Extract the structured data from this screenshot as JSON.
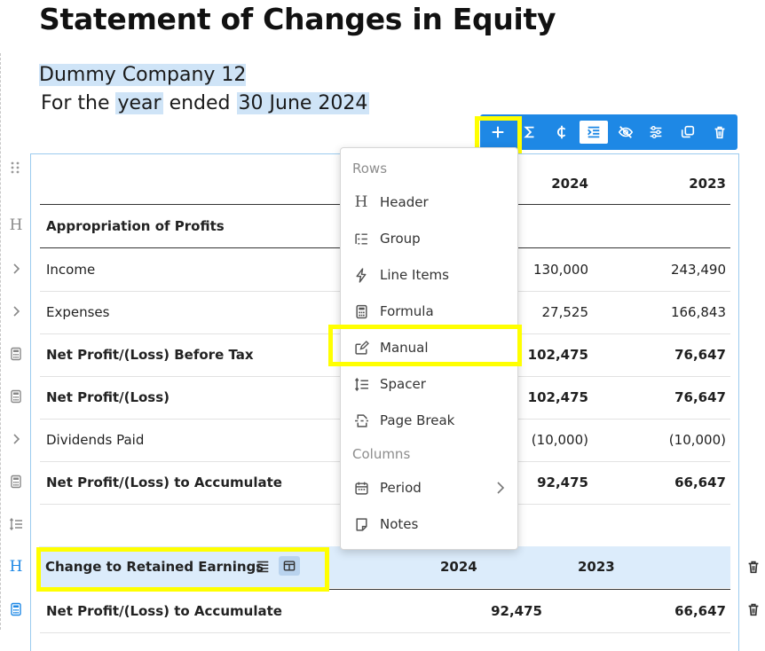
{
  "title": "Statement of Changes in Equity",
  "company": "Dummy Company 12",
  "period": {
    "prefix": "For the",
    "unit": "year",
    "mid": "ended",
    "date": "30 June 2024"
  },
  "toolbar": {
    "icons": [
      "add-icon",
      "sigma-icon",
      "currency-icon",
      "indent-icon",
      "hide-icon",
      "settings-sliders-icon",
      "duplicate-icon",
      "delete-icon"
    ],
    "accent": "#1e88e5"
  },
  "table": {
    "col_headers": [
      "2024",
      "2023"
    ],
    "rows": [
      {
        "label": "Appropriation of Profits",
        "bold": true,
        "v1": "",
        "v2": "",
        "icon": "header-icon"
      },
      {
        "label": "Income",
        "bold": false,
        "v1": "130,000",
        "v2": "243,490",
        "icon": "chevron-right-icon"
      },
      {
        "label": "Expenses",
        "bold": false,
        "v1": "27,525",
        "v2": "166,843",
        "icon": "chevron-right-icon"
      },
      {
        "label": "Net Profit/(Loss) Before Tax",
        "bold": true,
        "v1": "102,475",
        "v2": "76,647",
        "icon": "calculator-icon"
      },
      {
        "label": "Net Profit/(Loss)",
        "bold": true,
        "v1": "102,475",
        "v2": "76,647",
        "icon": "calculator-icon"
      },
      {
        "label": "Dividends Paid",
        "bold": false,
        "v1": "(10,000)",
        "v2": "(10,000)",
        "icon": "chevron-right-icon"
      },
      {
        "label": "Net Profit/(Loss) to Accumulate",
        "bold": true,
        "v1": "92,475",
        "v2": "66,647",
        "icon": "calculator-icon"
      },
      {
        "label": "",
        "bold": false,
        "v1": "",
        "v2": "",
        "icon": "spacer-icon"
      }
    ],
    "section2": {
      "header_label": "Change to Retained Earnings",
      "col_headers": [
        "2024",
        "2023"
      ],
      "row_label": "Net Profit/(Loss) to Accumulate",
      "row_v1": "92,475",
      "row_v2": "66,647"
    }
  },
  "menu": {
    "rows_heading": "Rows",
    "columns_heading": "Columns",
    "row_items": [
      "Header",
      "Group",
      "Line Items",
      "Formula",
      "Manual",
      "Spacer",
      "Page Break"
    ],
    "column_items": [
      "Period",
      "Notes"
    ]
  }
}
